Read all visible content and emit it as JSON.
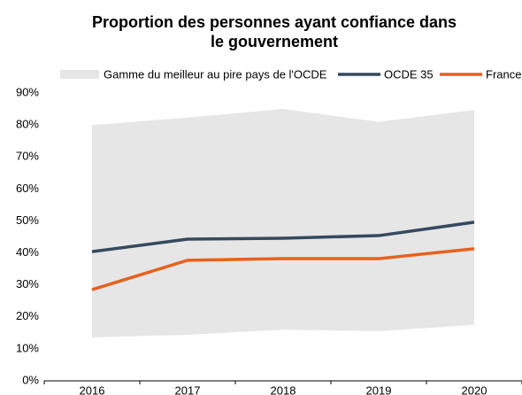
{
  "chart_data": {
    "type": "line",
    "title": "Proportion des personnes ayant confiance dans le gouvernement",
    "categories": [
      "2016",
      "2017",
      "2018",
      "2019",
      "2020"
    ],
    "range": {
      "name": "Gamme du meilleur au pire pays de l'OCDE",
      "color": "#e6e6e6",
      "low": [
        13.6,
        14.4,
        16,
        15.5,
        17.5
      ],
      "high": [
        80,
        82.3,
        85,
        81,
        84.7
      ]
    },
    "series": [
      {
        "name": "OCDE 35",
        "color": "#354a5f",
        "values": [
          40.4,
          44.3,
          44.6,
          45.4,
          49.6
        ]
      },
      {
        "name": "France",
        "color": "#e8601c",
        "values": [
          28.5,
          37.7,
          38.2,
          38.2,
          41.3
        ]
      }
    ],
    "ylim": [
      0,
      90
    ],
    "yticks": [
      {
        "value": 0,
        "label": "0%"
      },
      {
        "value": 10,
        "label": "10%"
      },
      {
        "value": 20,
        "label": "20%"
      },
      {
        "value": 30,
        "label": "30%"
      },
      {
        "value": 40,
        "label": "40%"
      },
      {
        "value": 50,
        "label": "50%"
      },
      {
        "value": 60,
        "label": "60%"
      },
      {
        "value": 70,
        "label": "70%"
      },
      {
        "value": 80,
        "label": "80%"
      },
      {
        "value": 90,
        "label": "90%"
      }
    ]
  }
}
